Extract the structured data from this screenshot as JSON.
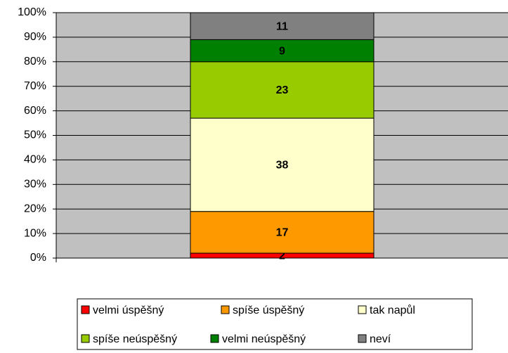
{
  "chart_data": {
    "type": "stacked_bar_100",
    "categories": [
      null
    ],
    "series": [
      {
        "name": "velmi úspěšný",
        "color": "#ff0000",
        "values": [
          2
        ]
      },
      {
        "name": "spíše úspěšný",
        "color": "#ff9900",
        "values": [
          17
        ]
      },
      {
        "name": "tak napůl",
        "color": "#ffffcc",
        "values": [
          38
        ]
      },
      {
        "name": "spíše neúspěšný",
        "color": "#99cc00",
        "values": [
          23
        ]
      },
      {
        "name": "velmi neúspěšný",
        "color": "#008000",
        "values": [
          9
        ]
      },
      {
        "name": "neví",
        "color": "#808080",
        "values": [
          11
        ]
      }
    ],
    "ylim": [
      0,
      100
    ],
    "yticks": [
      {
        "value": 0,
        "label": "0%"
      },
      {
        "value": 10,
        "label": "10%"
      },
      {
        "value": 20,
        "label": "20%"
      },
      {
        "value": 30,
        "label": "30%"
      },
      {
        "value": 40,
        "label": "40%"
      },
      {
        "value": 50,
        "label": "50%"
      },
      {
        "value": 60,
        "label": "60%"
      },
      {
        "value": 70,
        "label": "70%"
      },
      {
        "value": 80,
        "label": "80%"
      },
      {
        "value": 90,
        "label": "90%"
      },
      {
        "value": 100,
        "label": "100%"
      }
    ],
    "grid": true,
    "legend": "bottom"
  }
}
